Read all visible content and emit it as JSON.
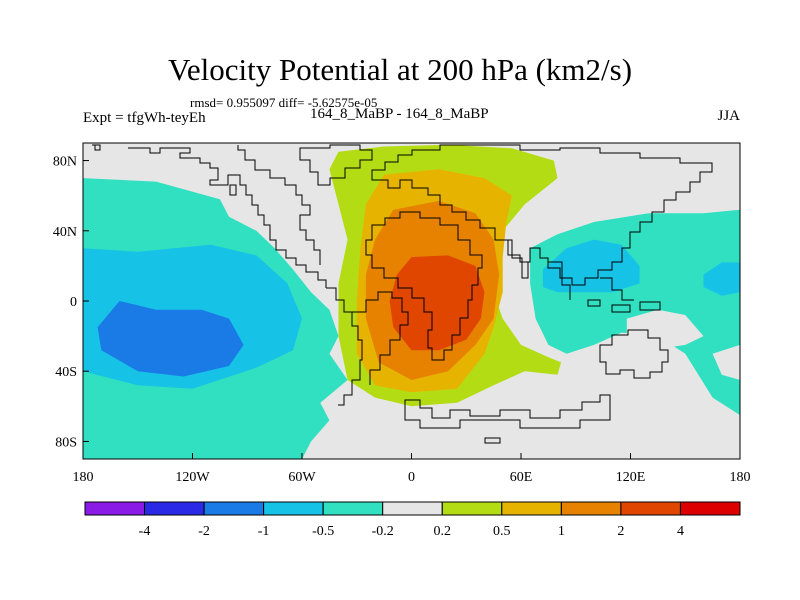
{
  "header": {
    "title": "Velocity Potential at 200 hPa (km2/s)",
    "stats": "rmsd= 0.955097 diff= -5.62575e-05",
    "experiment": "Expt = tfgWh-teyEh",
    "subtitle": "164_8_MaBP - 164_8_MaBP",
    "season": "JJA"
  },
  "axes": {
    "y_ticks": [
      {
        "label": "80N",
        "lat": 80
      },
      {
        "label": "40N",
        "lat": 40
      },
      {
        "label": "0",
        "lat": 0
      },
      {
        "label": "40S",
        "lat": -40
      },
      {
        "label": "80S",
        "lat": -80
      }
    ],
    "x_ticks": [
      {
        "label": "180",
        "lon": -180
      },
      {
        "label": "120W",
        "lon": -120
      },
      {
        "label": "60W",
        "lon": -60
      },
      {
        "label": "0",
        "lon": 0
      },
      {
        "label": "60E",
        "lon": 60
      },
      {
        "label": "120E",
        "lon": 120
      },
      {
        "label": "180",
        "lon": 180
      }
    ],
    "lon_range": [
      -180,
      180
    ],
    "lat_range": [
      -90,
      90
    ]
  },
  "colorbar": {
    "boxes": [
      "#8a1ae6",
      "#2a2ae6",
      "#1a7ae6",
      "#16c2e6",
      "#30e0c0",
      "#e6e6e6",
      "#b4dc14",
      "#e6b400",
      "#e68200",
      "#e04600",
      "#dc0000"
    ],
    "labels": [
      "-4",
      "-2",
      "-1",
      "-0.5",
      "-0.2",
      "0.2",
      "0.5",
      "1",
      "2",
      "4"
    ]
  },
  "chart_data": {
    "type": "heatmap",
    "title": "Velocity Potential at 200 hPa (km2/s)",
    "variable": "velocity potential",
    "units": "km2/s",
    "season": "JJA",
    "levels": [
      -4,
      -2,
      -1,
      -0.5,
      -0.2,
      0.2,
      0.5,
      1,
      2,
      4
    ],
    "colors": {
      "neutral": "#e6e6e6",
      "pos_0_2": "#b4dc14",
      "pos_0_5": "#e6b400",
      "pos_1": "#e68200",
      "pos_2": "#e04600",
      "neg_0_2": "#30e0c0",
      "neg_0_5": "#16c2e6",
      "neg_1": "#1a7ae6"
    },
    "regions": [
      {
        "name": "pacific-neg-outer",
        "sign": "negative",
        "level": -0.2,
        "poly": [
          [
            -180,
            70
          ],
          [
            -140,
            68
          ],
          [
            -105,
            58
          ],
          [
            -100,
            48
          ],
          [
            -85,
            40
          ],
          [
            -75,
            30
          ],
          [
            -65,
            18
          ],
          [
            -55,
            5
          ],
          [
            -45,
            -5
          ],
          [
            -40,
            -20
          ],
          [
            -45,
            -30
          ],
          [
            -35,
            -45
          ],
          [
            -50,
            -58
          ],
          [
            -45,
            -68
          ],
          [
            -55,
            -80
          ],
          [
            -60,
            -90
          ],
          [
            -180,
            -90
          ]
        ]
      },
      {
        "name": "pacific-neg-mid",
        "sign": "negative",
        "level": -0.5,
        "poly": [
          [
            -180,
            30
          ],
          [
            -150,
            28
          ],
          [
            -110,
            32
          ],
          [
            -85,
            26
          ],
          [
            -68,
            10
          ],
          [
            -60,
            -10
          ],
          [
            -65,
            -28
          ],
          [
            -85,
            -38
          ],
          [
            -120,
            -50
          ],
          [
            -150,
            -48
          ],
          [
            -180,
            -40
          ]
        ]
      },
      {
        "name": "pacific-neg-core",
        "sign": "negative",
        "level": -1,
        "poly": [
          [
            -160,
            0
          ],
          [
            -140,
            -5
          ],
          [
            -115,
            -5
          ],
          [
            -100,
            -10
          ],
          [
            -92,
            -25
          ],
          [
            -100,
            -37
          ],
          [
            -125,
            -43
          ],
          [
            -150,
            -40
          ],
          [
            -170,
            -28
          ],
          [
            -172,
            -15
          ]
        ]
      },
      {
        "name": "africa-pos-outer",
        "sign": "positive",
        "level": 0.2,
        "poly": [
          [
            -40,
            85
          ],
          [
            -15,
            88
          ],
          [
            20,
            89
          ],
          [
            55,
            87
          ],
          [
            78,
            80
          ],
          [
            80,
            70
          ],
          [
            62,
            55
          ],
          [
            50,
            40
          ],
          [
            43,
            20
          ],
          [
            45,
            5
          ],
          [
            50,
            -10
          ],
          [
            60,
            -25
          ],
          [
            75,
            -32
          ],
          [
            82,
            -35
          ],
          [
            80,
            -42
          ],
          [
            62,
            -40
          ],
          [
            45,
            -48
          ],
          [
            25,
            -58
          ],
          [
            0,
            -60
          ],
          [
            -20,
            -55
          ],
          [
            -35,
            -45
          ],
          [
            -40,
            -20
          ],
          [
            -40,
            10
          ],
          [
            -35,
            35
          ],
          [
            -40,
            55
          ],
          [
            -45,
            75
          ]
        ]
      },
      {
        "name": "africa-pos-0.5",
        "sign": "positive",
        "level": 0.5,
        "poly": [
          [
            -15,
            72
          ],
          [
            15,
            75
          ],
          [
            40,
            70
          ],
          [
            55,
            60
          ],
          [
            52,
            45
          ],
          [
            50,
            25
          ],
          [
            50,
            5
          ],
          [
            45,
            -15
          ],
          [
            40,
            -30
          ],
          [
            25,
            -50
          ],
          [
            0,
            -52
          ],
          [
            -20,
            -48
          ],
          [
            -30,
            -30
          ],
          [
            -30,
            0
          ],
          [
            -28,
            30
          ],
          [
            -25,
            55
          ]
        ]
      },
      {
        "name": "africa-pos-1",
        "sign": "positive",
        "level": 1,
        "poly": [
          [
            -10,
            52
          ],
          [
            15,
            57
          ],
          [
            35,
            50
          ],
          [
            45,
            35
          ],
          [
            48,
            15
          ],
          [
            45,
            -10
          ],
          [
            35,
            -25
          ],
          [
            20,
            -40
          ],
          [
            0,
            -45
          ],
          [
            -18,
            -35
          ],
          [
            -25,
            -10
          ],
          [
            -25,
            15
          ],
          [
            -20,
            35
          ]
        ]
      },
      {
        "name": "africa-pos-2",
        "sign": "positive",
        "level": 2,
        "poly": [
          [
            0,
            25
          ],
          [
            20,
            26
          ],
          [
            35,
            20
          ],
          [
            40,
            5
          ],
          [
            38,
            -10
          ],
          [
            30,
            -22
          ],
          [
            15,
            -28
          ],
          [
            0,
            -28
          ],
          [
            -10,
            -15
          ],
          [
            -12,
            0
          ],
          [
            -8,
            15
          ]
        ]
      },
      {
        "name": "indian-neg-outer",
        "sign": "negative",
        "level": -0.2,
        "poly": [
          [
            65,
            30
          ],
          [
            80,
            38
          ],
          [
            100,
            45
          ],
          [
            130,
            50
          ],
          [
            160,
            50
          ],
          [
            180,
            52
          ],
          [
            180,
            -65
          ],
          [
            165,
            -55
          ],
          [
            150,
            -30
          ],
          [
            135,
            -20
          ],
          [
            115,
            -18
          ],
          [
            100,
            -25
          ],
          [
            85,
            -30
          ],
          [
            75,
            -25
          ],
          [
            68,
            -10
          ],
          [
            65,
            10
          ]
        ]
      },
      {
        "name": "indian-neg-0.5",
        "sign": "negative",
        "level": -0.5,
        "poly": [
          [
            72,
            18
          ],
          [
            85,
            30
          ],
          [
            100,
            35
          ],
          [
            115,
            32
          ],
          [
            125,
            20
          ],
          [
            125,
            10
          ],
          [
            110,
            5
          ],
          [
            95,
            5
          ],
          [
            80,
            5
          ],
          [
            72,
            8
          ]
        ]
      },
      {
        "name": "dateline-neg-0.5",
        "sign": "negative",
        "level": -0.5,
        "poly": [
          [
            160,
            15
          ],
          [
            170,
            22
          ],
          [
            180,
            22
          ],
          [
            180,
            5
          ],
          [
            170,
            3
          ],
          [
            160,
            8
          ]
        ]
      }
    ],
    "neutral_islands": [
      {
        "name": "south-indian-neutral",
        "poly": [
          [
            118,
            -10
          ],
          [
            135,
            -5
          ],
          [
            150,
            -8
          ],
          [
            160,
            -20
          ],
          [
            150,
            -25
          ],
          [
            130,
            -28
          ],
          [
            118,
            -20
          ]
        ]
      },
      {
        "name": "southeast-pacific-neutral",
        "poly": [
          [
            165,
            -30
          ],
          [
            180,
            -25
          ],
          [
            180,
            -45
          ],
          [
            170,
            -42
          ]
        ]
      }
    ]
  }
}
